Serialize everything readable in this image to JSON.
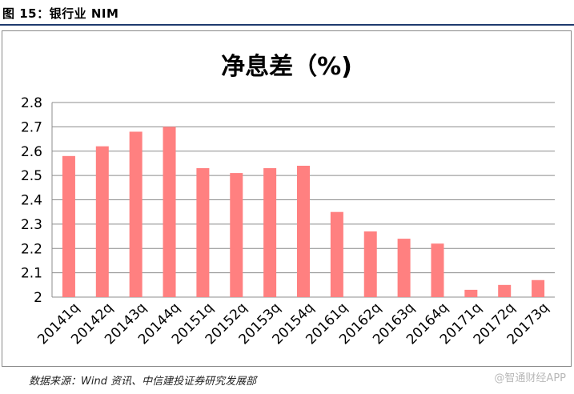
{
  "figure_label": "图 15：银行业 NIM",
  "source_note": "数据来源：Wind 资讯、中信建投证券研究发展部",
  "watermark": "@智通财经APP",
  "colors": {
    "bar": "#ff8080",
    "grid": "#8c8c8c",
    "header_rule": "#1f3a6e"
  },
  "chart_data": {
    "type": "bar",
    "title": "净息差（%)",
    "xlabel": "",
    "ylabel": "",
    "categories": [
      "20141q",
      "20142q",
      "20143q",
      "20144q",
      "20151q",
      "20152q",
      "20153q",
      "20154q",
      "20161q",
      "20162q",
      "20163q",
      "20164q",
      "20171q",
      "20172q",
      "20173q"
    ],
    "values": [
      2.58,
      2.62,
      2.68,
      2.7,
      2.53,
      2.51,
      2.53,
      2.54,
      2.35,
      2.27,
      2.24,
      2.22,
      2.03,
      2.05,
      2.07
    ],
    "ylim": [
      2.0,
      2.8
    ],
    "yticks": [
      "2",
      "2.1",
      "2.2",
      "2.3",
      "2.4",
      "2.5",
      "2.6",
      "2.7",
      "2.8"
    ],
    "grid": true,
    "legend": "none"
  }
}
